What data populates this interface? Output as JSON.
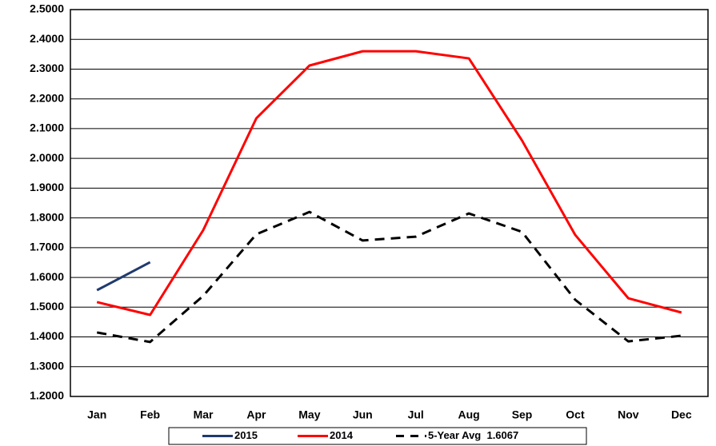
{
  "chart_data": {
    "type": "line",
    "categories": [
      "Jan",
      "Feb",
      "Mar",
      "Apr",
      "May",
      "Jun",
      "Jul",
      "Aug",
      "Sep",
      "Oct",
      "Nov",
      "Dec"
    ],
    "series": [
      {
        "name": "2015",
        "color": "#1f3a6e",
        "dashed": false,
        "values": [
          1.557,
          1.651,
          null,
          null,
          null,
          null,
          null,
          null,
          null,
          null,
          null,
          null
        ]
      },
      {
        "name": "2014",
        "color": "#ff0000",
        "dashed": false,
        "values": [
          1.517,
          1.474,
          1.759,
          2.135,
          2.312,
          2.36,
          2.36,
          2.336,
          2.06,
          1.743,
          1.53,
          1.482
        ]
      },
      {
        "name": "5-Year Avg  1.6067",
        "color": "#000000",
        "dashed": true,
        "values": [
          1.415,
          1.383,
          1.538,
          1.745,
          1.82,
          1.724,
          1.737,
          1.815,
          1.753,
          1.525,
          1.385,
          1.404
        ]
      }
    ],
    "ylim": [
      1.2,
      2.5
    ],
    "yticks": [
      {
        "value": 1.2,
        "label": "1.2000"
      },
      {
        "value": 1.3,
        "label": "1.3000"
      },
      {
        "value": 1.4,
        "label": "1.4000"
      },
      {
        "value": 1.5,
        "label": "1.5000"
      },
      {
        "value": 1.6,
        "label": "1.6000"
      },
      {
        "value": 1.7,
        "label": "1.7000"
      },
      {
        "value": 1.8,
        "label": "1.8000"
      },
      {
        "value": 1.9,
        "label": "1.9000"
      },
      {
        "value": 2.0,
        "label": "2.0000"
      },
      {
        "value": 2.1,
        "label": "2.1000"
      },
      {
        "value": 2.2,
        "label": "2.2000"
      },
      {
        "value": 2.3,
        "label": "2.3000"
      },
      {
        "value": 2.4,
        "label": "2.4000"
      },
      {
        "value": 2.5,
        "label": "2.5000"
      }
    ],
    "grid": true,
    "legend": "bottom"
  }
}
